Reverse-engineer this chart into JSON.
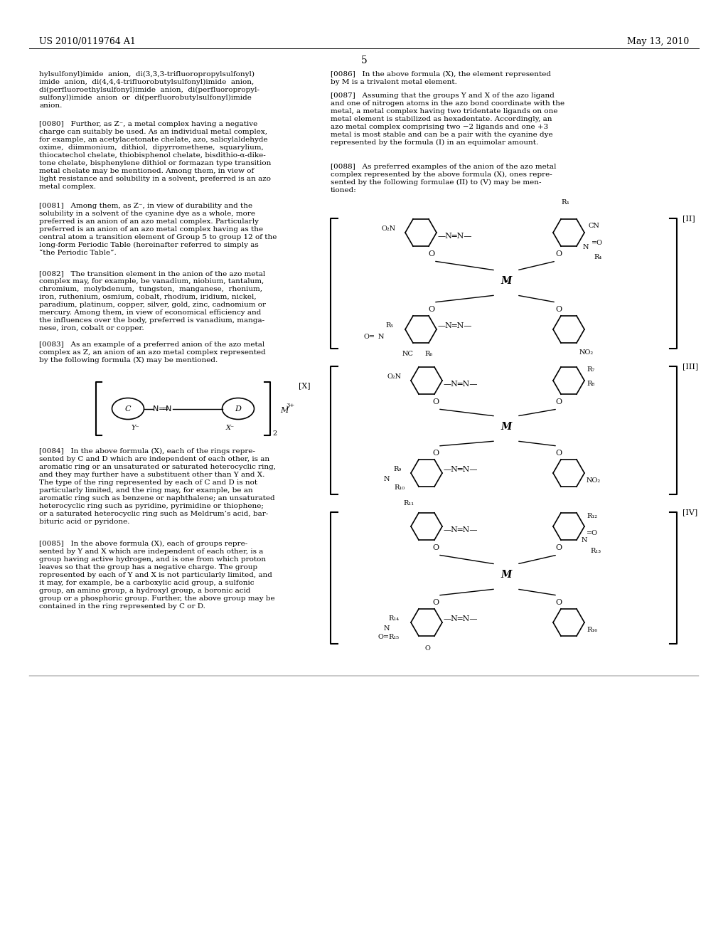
{
  "page_header_left": "US 2010/0119764 A1",
  "page_header_right": "May 13, 2010",
  "page_number": "5",
  "bg_color": "#ffffff",
  "text_color": "#000000",
  "left_column_text": [
    "hylsulfonyl)imide  anion,  di(3,3,3-trifluoropropylsulfonyl)\nimide  anion,  di(4,4,4-trifluorobutylsulfonyl)imide  anion,\ndi(perfluoroethylsulfonyl)imide  anion,  di(perfluoropropyl-\nsulfonyl)imide  anion  or  di(perfluorobutylsulfonyl)imide\nanion.",
    "[0080]  Further, as Z⁻, a metal complex having a negative\ncharge can suitably be used. As an individual metal complex,\nfor example, an acetylacetonate chelate, azo, salicylaldehyde\noxime,  diimmonium,  dithiol,  dipyrromethene,  squarylium,\nthiocatechol chelate, thiobisphenol chelate, bisdithio-α-dike-\ntone chelate, bisphenylene dithiol or formazan type transition\nmetal chelate may be mentioned. Among them, in view of\nlight resistance and solubility in a solvent, preferred is an azo\nmetal complex.",
    "[0081]  Among them, as Z⁻, in view of durability and the\nsolubility in a solvent of the cyanine dye as a whole, more\npreferred is an anion of an azo metal complex. Particularly\npreferred is an anion of an azo metal complex having as the\ncentral atom a transition element of Group 5 to group 12 of the\nlong-form Periodic Table (hereinafter referred to simply as\n“the Periodic Table”.",
    "[0082]  The transition element in the anion of the azo metal\ncomplex may, for example, be vanadium, niobium, tantalum,\nchromium,  molybdenum,  tungsten,  manganese,  rhenium,\niron, ruthenium, osmium, cobalt, rhodium, iridium, nickel,\nparadium, platinum, copper, silver, gold, zinc, cadnomium or\nmercury. Among them, in view of economical efficiency and\nthe influences over the body, preferred is vanadium, manga-\nnese, iron, cobalt or copper.",
    "[0083]  As an example of a preferred anion of the azo metal\ncomplex as Z, an anion of an azo metal complex represented\nby the following formula (X) may be mentioned.",
    "[0084]  In the above formula (X), each of the rings repre-\nsented by C and D which are independent of each other, is an\naromatic ring or an unsaturated or saturated heterocyclic ring,\nand they may further have a substituent other than Y and X.\nThe type of the ring represented by each of C and D is not\nparticularly limited, and the ring may, for example, be an\naromatic ring such as benzene or naphthalene; an unsaturated\nheterocyclic ring such as pyridine, pyrimidine or thiophene;\nor a saturated heterocyclic ring such as Meldrum’s acid, bar-\nbituric acid or pyridone.",
    "[0085]  In the above formula (X), each of groups repre-\nsented by Y and X which are independent of each other, is a\ngroup having active hydrogen, and is one from which proton\nleaves so that the group has a negative charge. The group\nrepresented by each of Y and X is not particularly limited, and\nit may, for example, be a carboxylic acid group, a sulfonic\ngroup, an amino group, a hydroxyl group, a boronic acid\ngroup or a phosphoric group. Further, the above group may be\ncontained in the ring represented by C or D."
  ],
  "right_column_text": [
    "[0086]  In the above formula (X), the element represented\nby M is a trivalent metal element.",
    "[0087]  Assuming that the groups Y and X of the azo ligand\nand one of nitrogen atoms in the azo bond coordinate with the\nmetal, a metal complex having two tridentate ligands on one\nmetal element is stabilized as hexadentate. Accordingly, an\nazo metal complex comprising two −2 ligands and one +3\nmetal is most stable and can be a pair with the cyanine dye\nrepresented by the formula (I) in an equimolar amount.",
    "[0088]  As preferred examples of the anion of the azo metal\ncomplex represented by the above formula (X), ones repre-\nsented by the following formulae (II) to (V) may be men-\ntioned:"
  ]
}
